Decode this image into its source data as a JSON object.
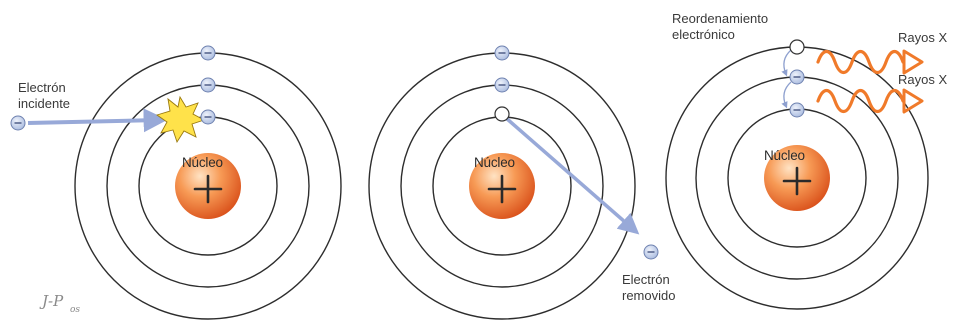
{
  "labels": {
    "nucleus": "Núcleo",
    "incident_electron": [
      "Electrón",
      "incidente"
    ],
    "removed_electron": [
      "Electrón",
      "removido"
    ],
    "rearrangement": [
      "Reordenamiento",
      "electrónico"
    ],
    "xray": "Rayos X",
    "signature": "J-P",
    "signature_sub": "os"
  },
  "colors": {
    "orbit": "#2d2d2d",
    "nucleus_light": "#ffd2a8",
    "nucleus_dark": "#e0581b",
    "electron_fill": "#c4d2ec",
    "electron_stroke": "#6f82b0",
    "arrow": "#98a9d8",
    "xray": "#f07a2a",
    "impact_star": "#ffe24a"
  },
  "icons": {
    "electron": "minus-sign-circle",
    "vacancy": "open-circle",
    "nucleus": "plus-sign-sphere",
    "impact": "starburst",
    "xray": "wavy-arrow"
  }
}
